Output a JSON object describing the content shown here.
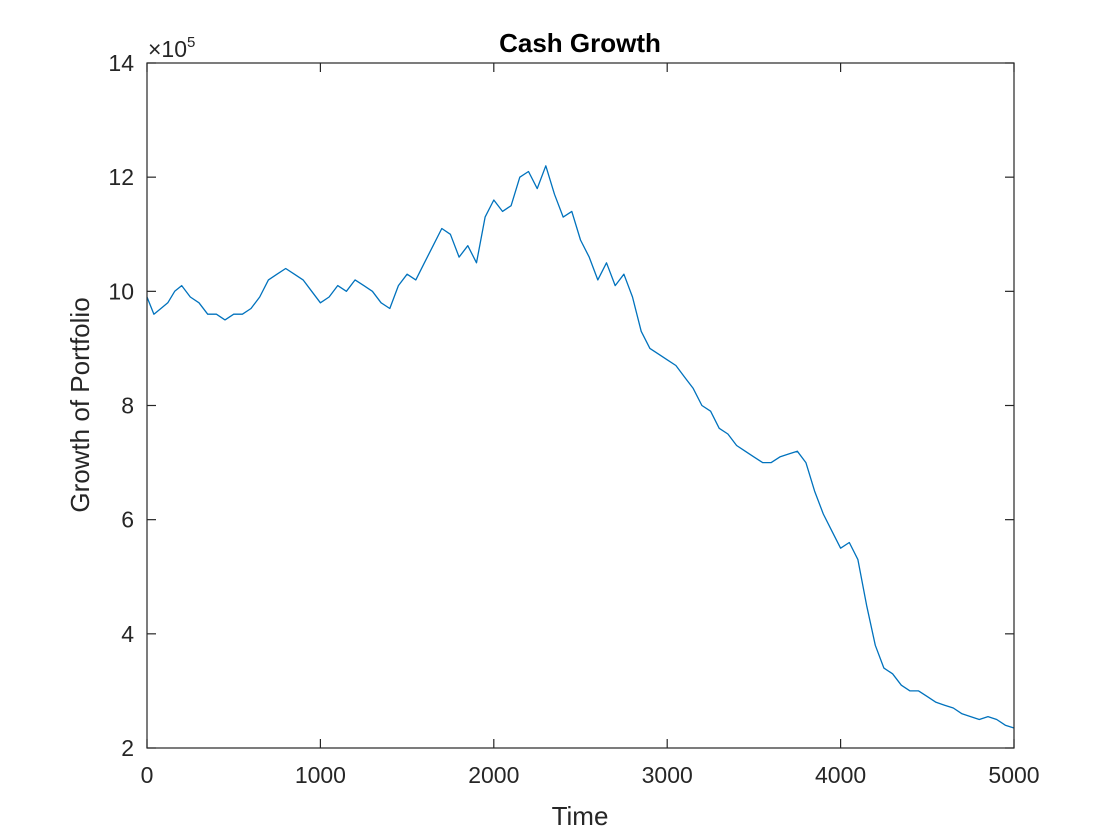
{
  "chart_data": {
    "type": "line",
    "title": "Cash Growth",
    "xlabel": "Time",
    "ylabel": "Growth of Portfolio",
    "xlim": [
      0,
      5000
    ],
    "ylim": [
      2,
      14
    ],
    "y_scale_exponent": {
      "base": "×10",
      "power": "5"
    },
    "x_ticks": [
      0,
      1000,
      2000,
      3000,
      4000,
      5000
    ],
    "x_tick_labels": [
      "0",
      "1000",
      "2000",
      "3000",
      "4000",
      "5000"
    ],
    "y_ticks": [
      2,
      4,
      6,
      8,
      10,
      12,
      14
    ],
    "y_tick_labels": [
      "2",
      "4",
      "6",
      "8",
      "10",
      "12",
      "14"
    ],
    "grid": false,
    "series": [
      {
        "color": "#0072BD",
        "x": [
          0,
          40,
          80,
          120,
          160,
          200,
          250,
          300,
          350,
          400,
          450,
          500,
          550,
          600,
          650,
          700,
          750,
          800,
          850,
          900,
          950,
          1000,
          1050,
          1100,
          1150,
          1200,
          1250,
          1300,
          1350,
          1400,
          1450,
          1500,
          1550,
          1600,
          1650,
          1700,
          1750,
          1800,
          1850,
          1900,
          1950,
          2000,
          2050,
          2100,
          2150,
          2200,
          2250,
          2300,
          2350,
          2400,
          2450,
          2500,
          2550,
          2600,
          2650,
          2700,
          2750,
          2800,
          2850,
          2900,
          2950,
          3000,
          3050,
          3100,
          3150,
          3200,
          3250,
          3300,
          3350,
          3400,
          3450,
          3500,
          3550,
          3600,
          3650,
          3700,
          3750,
          3800,
          3850,
          3900,
          3950,
          4000,
          4050,
          4100,
          4150,
          4200,
          4250,
          4300,
          4350,
          4400,
          4450,
          4500,
          4550,
          4600,
          4650,
          4700,
          4750,
          4800,
          4850,
          4900,
          4950,
          5000
        ],
        "y": [
          9.9,
          9.6,
          9.7,
          9.8,
          10.0,
          10.1,
          9.9,
          9.8,
          9.6,
          9.6,
          9.5,
          9.6,
          9.6,
          9.7,
          9.9,
          10.2,
          10.3,
          10.4,
          10.3,
          10.2,
          10.0,
          9.8,
          9.9,
          10.1,
          10.0,
          10.2,
          10.1,
          10.0,
          9.8,
          9.7,
          10.1,
          10.3,
          10.2,
          10.5,
          10.8,
          11.1,
          11.0,
          10.6,
          10.8,
          10.5,
          11.3,
          11.6,
          11.4,
          11.5,
          12.0,
          12.1,
          11.8,
          12.2,
          11.7,
          11.3,
          11.4,
          10.9,
          10.6,
          10.2,
          10.5,
          10.1,
          10.3,
          9.9,
          9.3,
          9.0,
          8.9,
          8.8,
          8.7,
          8.5,
          8.3,
          8.0,
          7.9,
          7.6,
          7.5,
          7.3,
          7.2,
          7.1,
          7.0,
          7.0,
          7.1,
          7.15,
          7.2,
          7.0,
          6.5,
          6.1,
          5.8,
          5.5,
          5.6,
          5.3,
          4.5,
          3.8,
          3.4,
          3.3,
          3.1,
          3.0,
          3.0,
          2.9,
          2.8,
          2.75,
          2.7,
          2.6,
          2.55,
          2.5,
          2.55,
          2.5,
          2.4,
          2.35
        ]
      }
    ]
  }
}
